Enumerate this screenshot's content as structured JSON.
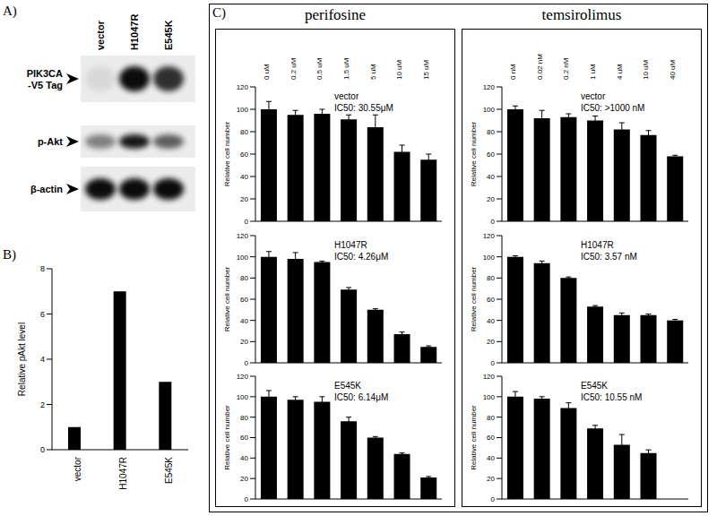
{
  "panel_labels": [
    "A)",
    "B)",
    "C)"
  ],
  "blot": {
    "lanes": [
      "vector",
      "H1047R",
      "E545K"
    ],
    "rows": [
      {
        "label": [
          "PIK3CA",
          "-V5 Tag"
        ],
        "intensity": [
          0.08,
          0.95,
          0.8
        ]
      },
      {
        "label": [
          "p-Akt"
        ],
        "intensity": [
          0.45,
          0.9,
          0.6
        ]
      },
      {
        "label": [
          "β-actin"
        ],
        "intensity": [
          0.95,
          0.95,
          0.95
        ]
      }
    ]
  },
  "columns": [
    "perifosine",
    "temsirolimus"
  ],
  "chart_data": [
    {
      "type": "bar",
      "categories": [
        "vector",
        "H1047R",
        "E545K"
      ],
      "values": [
        1,
        7,
        3
      ],
      "color": "#000000",
      "ylabel": "Relative pAkt level",
      "ylim": [
        0,
        8
      ],
      "yticks": [
        0,
        2,
        4,
        6,
        8
      ]
    },
    {
      "type": "bar",
      "categories": [
        "0 uM",
        "0.2 uM",
        "0.5 uM",
        "1.5 uM",
        "5 uM",
        "10 uM",
        "15 uM"
      ],
      "values": [
        100,
        95,
        96,
        91,
        84,
        62,
        55
      ],
      "errors": [
        7,
        4,
        4,
        4,
        11,
        6,
        5
      ],
      "color": "#000000",
      "ylabel": "Relative cell number",
      "annotations": [
        "vector",
        "IC50: 30.55μM"
      ],
      "ylim": [
        0,
        120
      ],
      "yticks": [
        0,
        20,
        40,
        60,
        80,
        100,
        120
      ]
    },
    {
      "type": "bar",
      "categories": [
        "0 uM",
        "0.2 uM",
        "0.5 uM",
        "1.5 uM",
        "5 uM",
        "10 uM",
        "15 uM"
      ],
      "values": [
        100,
        98,
        95,
        69,
        50,
        27,
        15
      ],
      "errors": [
        5,
        6,
        1,
        2,
        1,
        2,
        1
      ],
      "color": "#000000",
      "ylabel": "Relative cell number",
      "annotations": [
        "H1047R",
        "IC50: 4.26μM"
      ],
      "tick_labels": "y",
      "ylim": [
        0,
        120
      ],
      "yticks": [
        0,
        20,
        40,
        60,
        80,
        100,
        120
      ]
    },
    {
      "type": "bar",
      "categories": [
        "0 uM",
        "0.2 uM",
        "0.5 uM",
        "1.5 uM",
        "5 uM",
        "10 uM",
        "15 uM"
      ],
      "values": [
        100,
        97,
        95,
        76,
        60,
        44,
        21
      ],
      "errors": [
        6,
        3,
        5,
        4,
        1,
        1,
        1
      ],
      "color": "#000000",
      "ylabel": "Relative cell number",
      "annotations": [
        "E545K",
        "IC50: 6.14μM"
      ],
      "tick_labels": "y",
      "ylim": [
        0,
        120
      ],
      "yticks": [
        0,
        20,
        40,
        60,
        80,
        100,
        120
      ]
    },
    {
      "type": "bar",
      "categories": [
        "0 nM",
        "0.02 nM",
        "0.2 nM",
        "1 uM",
        "4 uM",
        "10 uM",
        "40 uM"
      ],
      "values": [
        100,
        92,
        93,
        90,
        82,
        77,
        58
      ],
      "errors": [
        3,
        7,
        3,
        4,
        6,
        4,
        1
      ],
      "color": "#000000",
      "ylabel": "Relative cell number",
      "annotations": [
        "vector",
        "IC50: >1000 nM"
      ],
      "ylim": [
        0,
        120
      ],
      "yticks": [
        0,
        20,
        40,
        60,
        80,
        100,
        120
      ]
    },
    {
      "type": "bar",
      "categories": [
        "0 nM",
        "0.02 nM",
        "0.2 nM",
        "1 uM",
        "4 uM",
        "10 uM",
        "40 uM"
      ],
      "values": [
        100,
        94,
        80,
        53,
        45,
        45,
        40
      ],
      "errors": [
        1,
        2,
        1,
        1,
        2,
        1,
        1
      ],
      "color": "#000000",
      "ylabel": "Relative cell number",
      "annotations": [
        "H1047R",
        "IC50: 3.57 nM"
      ],
      "tick_labels": "y",
      "ylim": [
        0,
        120
      ],
      "yticks": [
        0,
        20,
        40,
        60,
        80,
        100,
        120
      ]
    },
    {
      "type": "bar",
      "categories": [
        "0 nM",
        "0.02 nM",
        "0.2 nM",
        "1 uM",
        "4 uM",
        "10 uM",
        "40 uM"
      ],
      "values": [
        100,
        98,
        89,
        69,
        53,
        45,
        null
      ],
      "errors": [
        5,
        2,
        5,
        3,
        10,
        3,
        null
      ],
      "color": "#000000",
      "ylabel": "Relative cell number",
      "annotations": [
        "E545K",
        "IC50: 10.55 nM"
      ],
      "tick_labels": "y",
      "ylim": [
        0,
        120
      ],
      "yticks": [
        0,
        20,
        40,
        60,
        80,
        100,
        120
      ]
    }
  ]
}
